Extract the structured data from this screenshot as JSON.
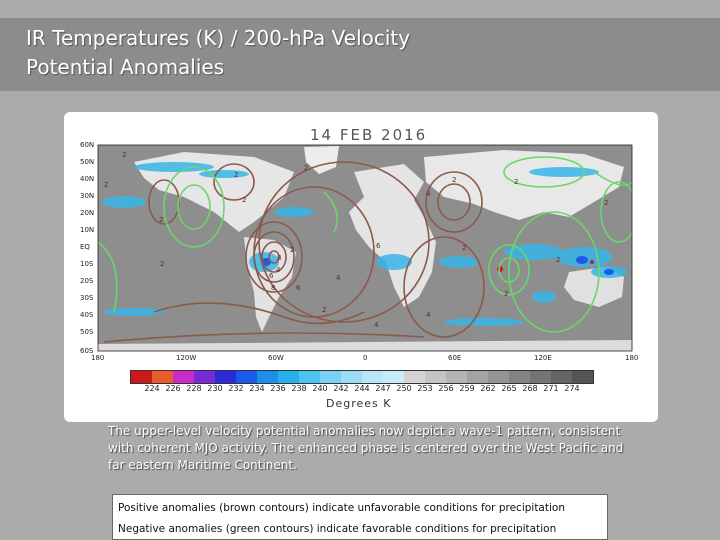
{
  "header": {
    "title_line1": "IR Temperatures (K) / 200-hPa Velocity",
    "title_line2": "Potential Anomalies",
    "band_color": "#8c8c8c"
  },
  "map": {
    "date": "14 FEB 2016",
    "lat_labels": [
      "60N",
      "50N",
      "40N",
      "30N",
      "20N",
      "10N",
      "EQ",
      "10S",
      "20S",
      "30S",
      "40S",
      "50S",
      "60S"
    ],
    "lon_labels": [
      "180",
      "120W",
      "60W",
      "0",
      "60E",
      "120E",
      "180"
    ],
    "contour_labels": [
      "2",
      "2",
      "2",
      "2",
      "2",
      "2",
      "2",
      "4",
      "4",
      "6",
      "6",
      "8",
      "8",
      "2",
      "6",
      "4",
      "4",
      "2",
      "2",
      "2",
      "4",
      "2",
      "2",
      "2",
      "2"
    ],
    "positive_contour_color": "#8b5a4a",
    "negative_contour_color": "#6bd66b",
    "cold_cloud_color": "#38b6e8",
    "land_color": "#ffffff",
    "ocean_clear_color": "#8e8e8e"
  },
  "colorbar": {
    "tick_labels": [
      "224",
      "226",
      "228",
      "230",
      "232",
      "234",
      "236",
      "238",
      "240",
      "242",
      "244",
      "247",
      "250",
      "253",
      "256",
      "259",
      "262",
      "265",
      "268",
      "271",
      "274"
    ],
    "colors": [
      "#cc1a1a",
      "#e85c2e",
      "#c82cc8",
      "#7a2ad8",
      "#2a2ad8",
      "#1a5ae8",
      "#1e8ee8",
      "#28b0ee",
      "#4cc4f2",
      "#78d2f4",
      "#9adcf6",
      "#b6e6f8",
      "#c8ecf8",
      "#d4d4d4",
      "#c4c4c4",
      "#b4b4b4",
      "#a4a4a4",
      "#949494",
      "#848484",
      "#747474",
      "#646464",
      "#545454"
    ],
    "units": "Degrees K"
  },
  "description": "The upper-level velocity potential anomalies now depict a wave-1 pattern, consistent with coherent MJO activity. The enhanced phase is centered over the West Pacific and far eastern Maritime Continent.",
  "legend": {
    "positive": "Positive anomalies (brown contours) indicate unfavorable conditions for precipitation",
    "negative": "Negative anomalies (green contours) indicate favorable conditions for precipitation"
  }
}
